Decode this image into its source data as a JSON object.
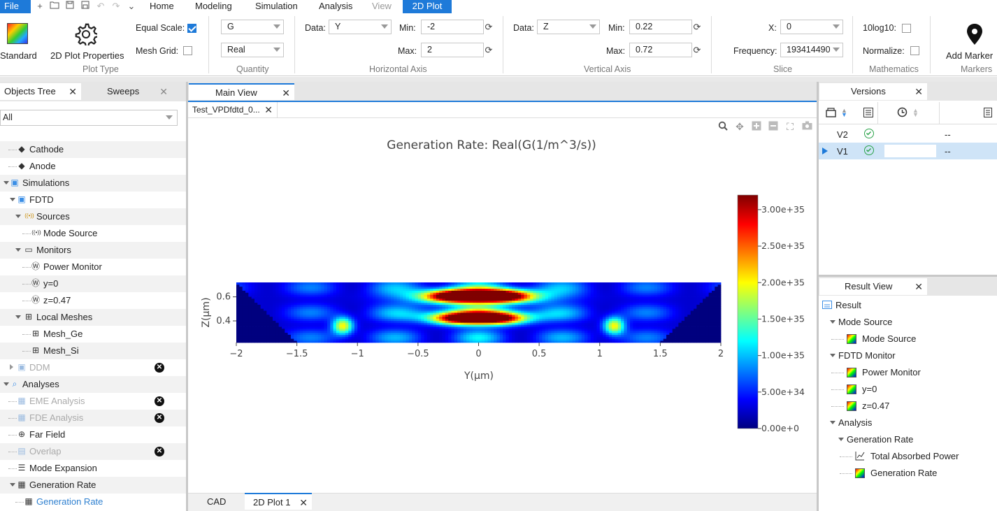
{
  "menubar": {
    "file": "File",
    "menus": [
      "Home",
      "Modeling",
      "Simulation",
      "Analysis",
      "View",
      "2D Plot"
    ]
  },
  "ribbon": {
    "plot_type": {
      "standard": "Standard",
      "properties": "2D Plot Properties",
      "label": "Plot Type"
    },
    "scale": {
      "equal_scale": "Equal Scale:",
      "equal_scale_checked": true,
      "mesh_grid": "Mesh Grid:",
      "mesh_grid_checked": false
    },
    "quantity": {
      "field": "G",
      "part": "Real",
      "label": "Quantity"
    },
    "horizontal": {
      "data_label": "Data:",
      "data": "Y",
      "min_label": "Min:",
      "min": "-2",
      "max_label": "Max:",
      "max": "2",
      "label": "Horizontal Axis"
    },
    "vertical": {
      "data_label": "Data:",
      "data": "Z",
      "min_label": "Min:",
      "min": "0.22",
      "max_label": "Max:",
      "max": "0.72",
      "label": "Vertical Axis"
    },
    "slice": {
      "x_label": "X:",
      "x": "0",
      "freq_label": "Frequency:",
      "freq": "193414490",
      "label": "Slice"
    },
    "math": {
      "log": "10log10:",
      "normalize": "Normalize:",
      "label": "Mathematics"
    },
    "markers": {
      "add": "Add Marker",
      "label": "Markers"
    }
  },
  "left_panel": {
    "tabs": [
      "Objects Tree",
      "Sweeps"
    ],
    "filter": "All",
    "items": [
      {
        "label": "Cathode"
      },
      {
        "label": "Anode"
      },
      {
        "label": "Simulations"
      },
      {
        "label": "FDTD"
      },
      {
        "label": "Sources"
      },
      {
        "label": "Mode Source"
      },
      {
        "label": "Monitors"
      },
      {
        "label": "Power Monitor"
      },
      {
        "label": "y=0"
      },
      {
        "label": "z=0.47"
      },
      {
        "label": "Local Meshes"
      },
      {
        "label": "Mesh_Ge"
      },
      {
        "label": "Mesh_Si"
      },
      {
        "label": "DDM"
      },
      {
        "label": "Analyses"
      },
      {
        "label": "EME Analysis"
      },
      {
        "label": "FDE Analysis"
      },
      {
        "label": "Far Field"
      },
      {
        "label": "Overlap"
      },
      {
        "label": "Mode Expansion"
      },
      {
        "label": "Generation Rate"
      },
      {
        "label": "Generation Rate"
      }
    ]
  },
  "main": {
    "tab": "Main View",
    "subtab": "Test_VPDfdtd_0...",
    "bottom_tabs": [
      "CAD",
      "2D Plot 1"
    ]
  },
  "chart_data": {
    "type": "heatmap",
    "title": "Generation Rate: Real(G(1/m^3/s))",
    "xlabel": "Y(μm)",
    "ylabel": "Z(μm)",
    "xlim": [
      -2,
      2
    ],
    "ylim": [
      0.22,
      0.72
    ],
    "x_ticks": [
      "−2",
      "−1.5",
      "−1",
      "−0.5",
      "0",
      "0.5",
      "1",
      "1.5",
      "2"
    ],
    "y_ticks": [
      "0.4",
      "0.6"
    ],
    "colorbar": {
      "min": 0,
      "max": 3.2e+35,
      "ticks": [
        "0.00e+0",
        "5.00e+34",
        "1.00e+35",
        "1.50e+35",
        "2.00e+35",
        "2.50e+35",
        "3.00e+35"
      ],
      "colormap": "jet"
    }
  },
  "versions": {
    "tab": "Versions",
    "rows": [
      {
        "name": "V2",
        "value": "--"
      },
      {
        "name": "V1",
        "value": "--"
      }
    ]
  },
  "results": {
    "tab": "Result View",
    "items": [
      "Result",
      "Mode Source",
      "Mode Source",
      "FDTD Monitor",
      "Power Monitor",
      "y=0",
      "z=0.47",
      "Analysis",
      "Generation Rate",
      "Total Absorbed Power",
      "Generation Rate"
    ]
  }
}
